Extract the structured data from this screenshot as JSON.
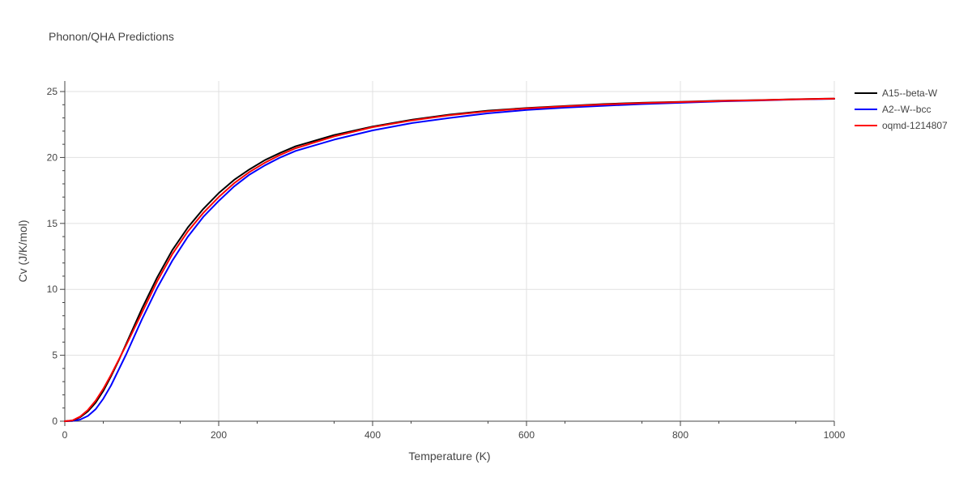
{
  "chart_data": {
    "type": "line",
    "title": "Phonon/QHA Predictions",
    "xlabel": "Temperature (K)",
    "ylabel": "Cv (J/K/mol)",
    "xlim": [
      0,
      1000
    ],
    "ylim": [
      0,
      25.8
    ],
    "xticks": [
      0,
      200,
      400,
      600,
      800,
      1000
    ],
    "yticks": [
      0,
      5,
      10,
      15,
      20,
      25
    ],
    "grid": true,
    "legend_position": "top-right",
    "series": [
      {
        "name": "A15--beta-W",
        "color": "#000000",
        "x": [
          0,
          10,
          20,
          30,
          40,
          50,
          60,
          70,
          80,
          90,
          100,
          120,
          140,
          160,
          180,
          200,
          220,
          240,
          260,
          280,
          300,
          350,
          400,
          450,
          500,
          550,
          600,
          650,
          700,
          750,
          800,
          850,
          900,
          950,
          1000
        ],
        "y": [
          0,
          0.05,
          0.3,
          0.75,
          1.4,
          2.3,
          3.4,
          4.6,
          5.9,
          7.2,
          8.5,
          10.9,
          13.0,
          14.7,
          16.1,
          17.3,
          18.3,
          19.1,
          19.8,
          20.35,
          20.85,
          21.7,
          22.35,
          22.85,
          23.25,
          23.55,
          23.75,
          23.9,
          24.05,
          24.15,
          24.22,
          24.3,
          24.35,
          24.42,
          24.47
        ]
      },
      {
        "name": "A2--W--bcc",
        "color": "#0000ff",
        "x": [
          0,
          10,
          20,
          30,
          40,
          50,
          60,
          70,
          80,
          90,
          100,
          120,
          140,
          160,
          180,
          200,
          220,
          240,
          260,
          280,
          300,
          350,
          400,
          450,
          500,
          550,
          600,
          650,
          700,
          750,
          800,
          850,
          900,
          950,
          1000
        ],
        "y": [
          0,
          0.02,
          0.12,
          0.4,
          0.9,
          1.7,
          2.7,
          3.9,
          5.1,
          6.4,
          7.7,
          10.1,
          12.2,
          14.0,
          15.5,
          16.7,
          17.8,
          18.7,
          19.4,
          20.0,
          20.5,
          21.35,
          22.05,
          22.6,
          23.0,
          23.35,
          23.6,
          23.78,
          23.92,
          24.05,
          24.15,
          24.25,
          24.32,
          24.4,
          24.45
        ]
      },
      {
        "name": "oqmd-1214807",
        "color": "#ff0000",
        "x": [
          0,
          10,
          20,
          30,
          40,
          50,
          60,
          70,
          80,
          90,
          100,
          120,
          140,
          160,
          180,
          200,
          220,
          240,
          260,
          280,
          300,
          350,
          400,
          450,
          500,
          550,
          600,
          650,
          700,
          750,
          800,
          850,
          900,
          950,
          1000
        ],
        "y": [
          0,
          0.06,
          0.35,
          0.85,
          1.55,
          2.45,
          3.5,
          4.65,
          5.8,
          7.0,
          8.2,
          10.6,
          12.7,
          14.4,
          15.8,
          17.0,
          18.05,
          18.9,
          19.6,
          20.2,
          20.7,
          21.6,
          22.3,
          22.8,
          23.2,
          23.5,
          23.72,
          23.88,
          24.02,
          24.12,
          24.2,
          24.28,
          24.34,
          24.41,
          24.46
        ]
      }
    ]
  }
}
